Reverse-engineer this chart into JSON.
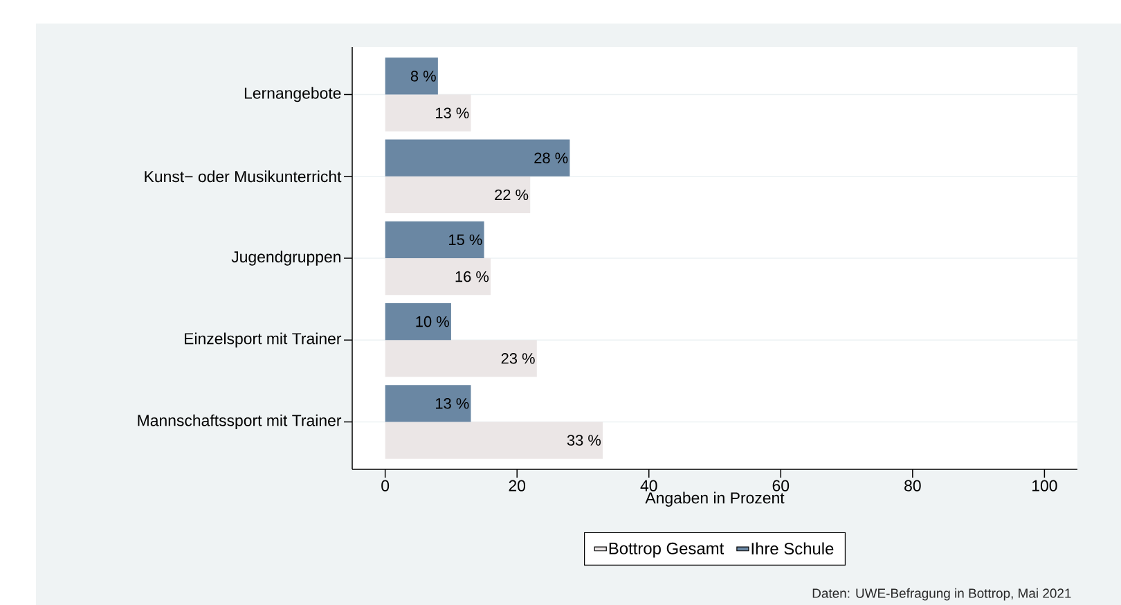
{
  "chart_data": {
    "type": "bar",
    "orientation": "horizontal",
    "categories": [
      "Lernangebote",
      "Kunst− oder Musikunterricht",
      "Jugendgruppen",
      "Einzelsport mit Trainer",
      "Mannschaftssport mit Trainer"
    ],
    "series": [
      {
        "name": "Bottrop Gesamt",
        "color": "#ebe6e6",
        "values": [
          13,
          22,
          16,
          23,
          33
        ],
        "value_labels": [
          "13 %",
          "22 %",
          "16 %",
          "23 %",
          "33 %"
        ]
      },
      {
        "name": "Ihre Schule",
        "color": "#6a87a3",
        "values": [
          8,
          28,
          15,
          10,
          13
        ],
        "value_labels": [
          "8 %",
          "28 %",
          "15 %",
          "10 %",
          "13 %"
        ]
      }
    ],
    "xlabel": "Angaben in Prozent",
    "xlim": [
      -5,
      105
    ],
    "xticks": [
      0,
      20,
      40,
      60,
      80,
      100
    ],
    "grid": "y",
    "legend": "bottom",
    "annotations": [
      "Daten: UWE-Befragung in Bottrop, Mai 2021"
    ]
  }
}
